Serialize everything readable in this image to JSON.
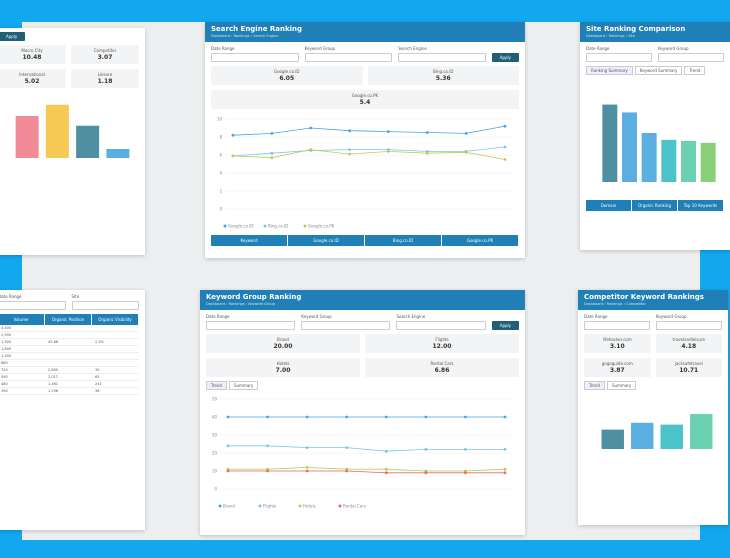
{
  "panels": [
    {
      "filters": [],
      "button": "Apply",
      "stats": [
        {
          "label": "Macro City",
          "value": "10.48"
        },
        {
          "label": "Competitor",
          "value": "3.07"
        },
        {
          "label": "International",
          "value": "5.02"
        },
        {
          "label": "Leisure",
          "value": "1.18"
        }
      ],
      "chart": {
        "type": "bar",
        "values": [
          5.6,
          7.1,
          4.3,
          1.2
        ],
        "colors": [
          "#f28b98",
          "#f6c955",
          "#4f8fa2",
          "#5aaee0"
        ],
        "ylim": [
          0,
          8
        ]
      }
    },
    {
      "title": "Search Engine Ranking",
      "subtitle": "Dashboard › Rankings › Search Engine",
      "filters": [
        "Date Range",
        "Keyword Group",
        "Search Engine"
      ],
      "button": "Apply",
      "stats": [
        {
          "label": "Google.co.ID",
          "value": "6.05"
        },
        {
          "label": "Bing.co.ID",
          "value": "5.36"
        },
        {
          "label": "Google.co.PK",
          "value": "5.4"
        }
      ],
      "chart": {
        "type": "line",
        "ylim": [
          0,
          10
        ],
        "yticks": [
          0,
          2,
          4,
          6,
          8,
          10
        ],
        "grid": true,
        "series": [
          {
            "name": "Google.co.ID",
            "color": "#4aa3e0",
            "values": [
              8.2,
              8.4,
              9.0,
              8.7,
              8.6,
              8.5,
              8.4,
              9.2
            ]
          },
          {
            "name": "Bing.co.ID",
            "color": "#79c6ea",
            "values": [
              5.9,
              6.2,
              6.5,
              6.6,
              6.6,
              6.4,
              6.4,
              6.9
            ]
          },
          {
            "name": "Google.co.PK",
            "color": "#b9cc5a",
            "values": [
              5.9,
              5.7,
              6.6,
              6.1,
              6.4,
              6.2,
              6.3,
              5.5
            ]
          }
        ]
      },
      "table_header": [
        "Keyword",
        "Google.co.ID",
        "Bing.co.ID",
        "Google.co.PK"
      ]
    },
    {
      "title": "Site Ranking Comparison",
      "subtitle": "Dashboard › Rankings › Site",
      "filters": [
        "Date Range",
        "Keyword Group"
      ],
      "tabs": [
        "Ranking Summary",
        "Keyword Summary",
        "Trend"
      ],
      "chart": {
        "type": "bar",
        "values": [
          7.9,
          7.1,
          5.0,
          4.3,
          4.2,
          4.0
        ],
        "colors": [
          "#4f8fa2",
          "#5aaee0",
          "#5aaee0",
          "#4bc3c8",
          "#6cd1b0",
          "#8ad07a"
        ],
        "ylim": [
          0,
          10
        ]
      },
      "table_header": [
        "Domain",
        "Organic Ranking",
        "Top 10 Keywords"
      ]
    },
    {
      "filters": [
        "Date Range",
        "Site"
      ],
      "table_header": [
        "Volume",
        "Organic Position",
        "Organic Visibility"
      ],
      "rows": [
        [
          "4,400",
          "",
          "",
          ""
        ],
        [
          "2,900",
          "",
          "",
          ""
        ],
        [
          "1,900",
          "42.86",
          "2.5%"
        ],
        [
          "1,600",
          "",
          ""
        ],
        [
          "1,300",
          "",
          ""
        ],
        [
          "880",
          "",
          ""
        ],
        [
          "720",
          "2,800",
          "39"
        ],
        [
          "590",
          "2,017",
          "65"
        ],
        [
          "480",
          "1,461",
          "241"
        ],
        [
          "390",
          "1,296",
          "36"
        ]
      ]
    },
    {
      "title": "Keyword Group Ranking",
      "subtitle": "Dashboard › Rankings › Keyword Group",
      "filters": [
        "Date Range",
        "Keyword Group",
        "Search Engine"
      ],
      "button": "Apply",
      "stats": [
        {
          "label": "Brand",
          "value": "20.00"
        },
        {
          "label": "Flights",
          "value": "12.00"
        },
        {
          "label": "Hotels",
          "value": "7.00"
        },
        {
          "label": "Rental Cars",
          "value": "6.86"
        }
      ],
      "tabs": [
        "Trend",
        "Summary"
      ],
      "chart": {
        "type": "line",
        "ylim": [
          0,
          50
        ],
        "yticks": [
          0,
          10,
          20,
          30,
          40,
          50
        ],
        "grid": true,
        "series": [
          {
            "name": "Brand",
            "color": "#4aa3e0",
            "values": [
              40,
              40,
              40,
              40,
              40,
              40,
              40,
              40
            ]
          },
          {
            "name": "Flights",
            "color": "#79c6ea",
            "values": [
              24,
              24,
              23,
              23,
              21,
              22,
              22,
              22
            ]
          },
          {
            "name": "Hotels",
            "color": "#b9cc5a",
            "values": [
              11,
              11,
              12,
              11,
              11,
              10,
              10,
              11
            ]
          },
          {
            "name": "Rental Cars",
            "color": "#e86a5a",
            "values": [
              10,
              10,
              10,
              10,
              9,
              9,
              9,
              9
            ]
          }
        ]
      }
    },
    {
      "title": "Competitor Keyword Rankings",
      "subtitle": "Dashboard › Rankings › Competitor",
      "filters": [
        "Date Range",
        "Keyword Group"
      ],
      "stats": [
        {
          "label": "lifehacker.com",
          "value": "3.10"
        },
        {
          "label": "travelandleisure",
          "value": "4.18"
        },
        {
          "label": "gogoguide.com",
          "value": "3.87"
        },
        {
          "label": "jacksafetravel",
          "value": "10.71"
        }
      ],
      "tabs": [
        "Trend",
        "Summary"
      ],
      "chart": {
        "type": "bar",
        "values": [
          3.1,
          4.2,
          3.9,
          5.6
        ],
        "colors": [
          "#4f8fa2",
          "#5aaee0",
          "#4bc3c8",
          "#6cd1b0"
        ],
        "ylim": [
          0,
          8
        ]
      }
    }
  ]
}
